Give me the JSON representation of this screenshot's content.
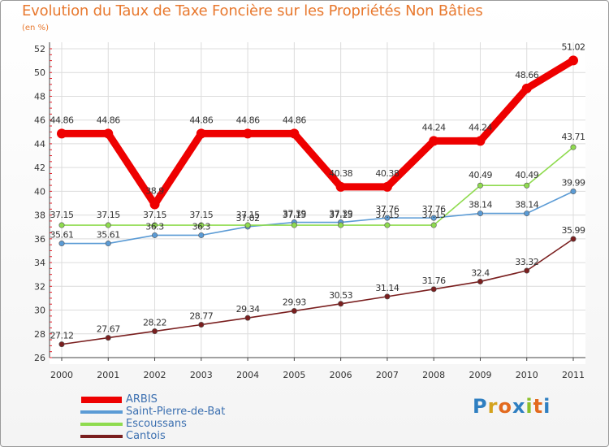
{
  "page": {
    "title": "Evolution du Taux de Taxe Foncière sur les Propriétés Non Bâties",
    "unit": "(en %)",
    "logo": [
      "P",
      "r",
      "o",
      "x",
      "i",
      "t",
      "i"
    ]
  },
  "colors": {
    "title": "#e8792f",
    "grid": "#dcdcdc",
    "axis": "#444444",
    "tick_red": "#e0202a",
    "logo": [
      "#2f7fc1",
      "#d4a21c",
      "#e36a1e",
      "#2f7fc1",
      "#8cbf2a",
      "#e36a1e",
      "#2f7fc1"
    ]
  },
  "chart_data": {
    "type": "line",
    "title": "Evolution du Taux de Taxe Foncière sur les Propriétés Non Bâties",
    "ylabel": "(en %)",
    "xlabel": "",
    "x": [
      "2000",
      "2001",
      "2002",
      "2003",
      "2004",
      "2005",
      "2006",
      "2007",
      "2008",
      "2009",
      "2010",
      "2011"
    ],
    "ylim": [
      26,
      52
    ],
    "yticks": [
      "26",
      "28",
      "30",
      "32",
      "34",
      "36",
      "38",
      "40",
      "42",
      "44",
      "46",
      "48",
      "50",
      "52"
    ],
    "grid": true,
    "legend_position": "bottom-left",
    "series": [
      {
        "name": "ARBIS",
        "color": "#ee0000",
        "values": [
          44.86,
          44.86,
          38.9,
          44.86,
          44.86,
          44.86,
          40.38,
          40.38,
          44.24,
          44.24,
          48.66,
          51.02
        ],
        "labels": [
          "44.86",
          "44.86",
          "38.9",
          "44.86",
          "44.86",
          "44.86",
          "40.38",
          "40.38",
          "44.24",
          "44.24",
          "48.66",
          "51.02"
        ]
      },
      {
        "name": "Saint-Pierre-de-Bat",
        "color": "#5b9bd5",
        "values": [
          35.61,
          35.61,
          36.3,
          36.3,
          37.02,
          37.39,
          37.39,
          37.76,
          37.76,
          38.14,
          38.14,
          39.99
        ],
        "labels": [
          "35.61",
          "35.61",
          "36.3",
          "36.3",
          "37.02",
          "37.39",
          "37.39",
          "37.76",
          "37.76",
          "38.14",
          "38.14",
          "39.99"
        ]
      },
      {
        "name": "Escoussans",
        "color": "#8fdb4f",
        "values": [
          37.15,
          37.15,
          37.15,
          37.15,
          37.15,
          37.15,
          37.15,
          37.15,
          37.15,
          40.49,
          40.49,
          43.71
        ],
        "labels": [
          "37.15",
          "37.15",
          "37.15",
          "37.15",
          "37.15",
          "37.15",
          "37.15",
          "37.15",
          "37.15",
          "40.49",
          "40.49",
          "43.71"
        ]
      },
      {
        "name": "Cantois",
        "color": "#7a1f1f",
        "values": [
          27.12,
          27.67,
          28.22,
          28.77,
          29.34,
          29.93,
          30.53,
          31.14,
          31.76,
          32.4,
          33.32,
          35.99
        ],
        "labels": [
          "27.12",
          "27.67",
          "28.22",
          "28.77",
          "29.34",
          "29.93",
          "30.53",
          "31.14",
          "31.76",
          "32.4",
          "33.32",
          "35.99"
        ]
      }
    ]
  }
}
